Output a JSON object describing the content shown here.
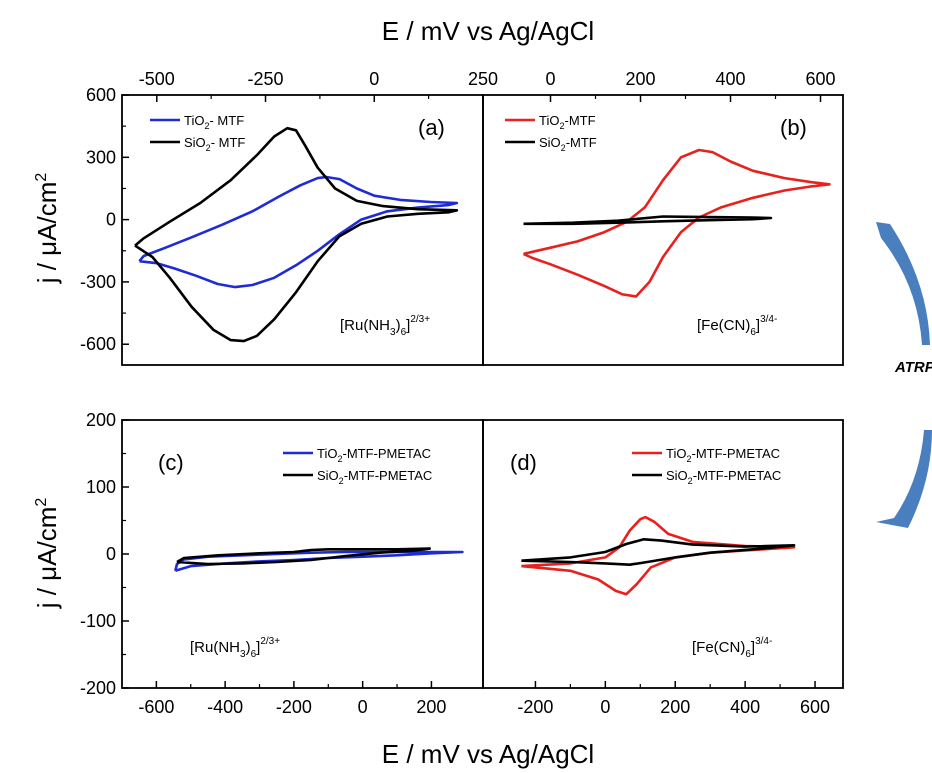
{
  "figure": {
    "top_axis_title": "E / mV  vs Ag/AgCl",
    "bottom_axis_title": "E / mV  vs Ag/AgCl",
    "top_y_title": "j / μA/cm",
    "bottom_y_title": "j / μA/cm",
    "y_title_superscript": "2",
    "side_label": "ATRP"
  },
  "colors": {
    "tio2": "#e8211c",
    "tio2_blue": "#1f2bd6",
    "sio2": "#000000",
    "arrow": "#4a7fbf"
  },
  "chart_data": [
    {
      "id": "a",
      "type": "line",
      "label": "(a)",
      "species": {
        "base": "[Ru(NH",
        "sub1": "3",
        "mid": ")",
        "sub2": "6",
        "end": "]",
        "sup": "2/3+"
      },
      "xaxis": "top",
      "xlim": [
        -580,
        250
      ],
      "ylim": [
        -700,
        600
      ],
      "xticks": [
        -500,
        -250,
        0,
        250
      ],
      "yticks": [
        -600,
        -300,
        0,
        300,
        600
      ],
      "series": [
        {
          "name": "TiO2- MTF",
          "legend": {
            "base": "TiO",
            "sub": "2",
            "rest": "- MTF"
          },
          "color": "#1f2bd6",
          "points": [
            [
              -540,
              -200
            ],
            [
              -530,
              -175
            ],
            [
              -480,
              -135
            ],
            [
              -420,
              -85
            ],
            [
              -350,
              -25
            ],
            [
              -280,
              40
            ],
            [
              -220,
              110
            ],
            [
              -170,
              165
            ],
            [
              -130,
              200
            ],
            [
              -110,
              205
            ],
            [
              -80,
              195
            ],
            [
              -40,
              150
            ],
            [
              0,
              115
            ],
            [
              60,
              95
            ],
            [
              130,
              85
            ],
            [
              190,
              80
            ],
            [
              170,
              70
            ],
            [
              100,
              58
            ],
            [
              30,
              40
            ],
            [
              -30,
              0
            ],
            [
              -80,
              -70
            ],
            [
              -130,
              -150
            ],
            [
              -180,
              -220
            ],
            [
              -230,
              -280
            ],
            [
              -280,
              -315
            ],
            [
              -320,
              -325
            ],
            [
              -360,
              -310
            ],
            [
              -410,
              -270
            ],
            [
              -460,
              -235
            ],
            [
              -500,
              -210
            ],
            [
              -540,
              -200
            ]
          ]
        },
        {
          "name": "SiO2- MTF",
          "legend": {
            "base": "SiO",
            "sub": "2",
            "rest": "- MTF"
          },
          "color": "#000000",
          "points": [
            [
              -550,
              -125
            ],
            [
              -530,
              -90
            ],
            [
              -470,
              -10
            ],
            [
              -400,
              80
            ],
            [
              -330,
              190
            ],
            [
              -270,
              310
            ],
            [
              -230,
              400
            ],
            [
              -200,
              440
            ],
            [
              -180,
              430
            ],
            [
              -160,
              360
            ],
            [
              -130,
              250
            ],
            [
              -90,
              150
            ],
            [
              -40,
              90
            ],
            [
              20,
              65
            ],
            [
              100,
              50
            ],
            [
              190,
              45
            ],
            [
              170,
              35
            ],
            [
              100,
              28
            ],
            [
              30,
              15
            ],
            [
              -30,
              -20
            ],
            [
              -80,
              -80
            ],
            [
              -130,
              -200
            ],
            [
              -180,
              -350
            ],
            [
              -230,
              -480
            ],
            [
              -270,
              -560
            ],
            [
              -300,
              -585
            ],
            [
              -330,
              -580
            ],
            [
              -370,
              -530
            ],
            [
              -420,
              -420
            ],
            [
              -470,
              -280
            ],
            [
              -510,
              -180
            ],
            [
              -550,
              -125
            ]
          ]
        }
      ]
    },
    {
      "id": "b",
      "type": "line",
      "label": "(b)",
      "species": {
        "base": "[Fe(CN)",
        "sub1": "6",
        "end": "]",
        "sup": "3/4-"
      },
      "xaxis": "top",
      "xlim": [
        -150,
        650
      ],
      "ylim": [
        -700,
        600
      ],
      "xticks": [
        0,
        200,
        400,
        600
      ],
      "yticks": [],
      "series": [
        {
          "name": "TiO2-MTF",
          "legend": {
            "base": "TiO",
            "sub": "2",
            "rest": "-MTF"
          },
          "color": "#e8211c",
          "points": [
            [
              -60,
              -165
            ],
            [
              0,
              -135
            ],
            [
              60,
              -105
            ],
            [
              120,
              -60
            ],
            [
              170,
              -10
            ],
            [
              210,
              60
            ],
            [
              250,
              190
            ],
            [
              290,
              300
            ],
            [
              330,
              335
            ],
            [
              360,
              325
            ],
            [
              400,
              280
            ],
            [
              450,
              235
            ],
            [
              520,
              200
            ],
            [
              580,
              180
            ],
            [
              620,
              170
            ],
            [
              580,
              160
            ],
            [
              520,
              140
            ],
            [
              450,
              105
            ],
            [
              380,
              60
            ],
            [
              330,
              10
            ],
            [
              290,
              -60
            ],
            [
              250,
              -180
            ],
            [
              220,
              -300
            ],
            [
              190,
              -370
            ],
            [
              160,
              -360
            ],
            [
              120,
              -320
            ],
            [
              60,
              -265
            ],
            [
              0,
              -215
            ],
            [
              -40,
              -185
            ],
            [
              -60,
              -165
            ]
          ]
        },
        {
          "name": "SiO2-MTF",
          "legend": {
            "base": "SiO",
            "sub": "2",
            "rest": "-MTF"
          },
          "color": "#000000",
          "points": [
            [
              -60,
              -20
            ],
            [
              50,
              -15
            ],
            [
              150,
              -5
            ],
            [
              250,
              15
            ],
            [
              350,
              12
            ],
            [
              450,
              10
            ],
            [
              490,
              8
            ],
            [
              450,
              2
            ],
            [
              350,
              -3
            ],
            [
              250,
              -8
            ],
            [
              150,
              -15
            ],
            [
              50,
              -20
            ],
            [
              -60,
              -20
            ]
          ]
        }
      ]
    },
    {
      "id": "c",
      "type": "line",
      "label": "(c)",
      "species": {
        "base": "[Ru(NH",
        "sub1": "3",
        "mid": ")",
        "sub2": "6",
        "end": "]",
        "sup": "2/3+"
      },
      "xaxis": "bottom",
      "xlim": [
        -700,
        350
      ],
      "ylim": [
        -200,
        200
      ],
      "xticks": [
        -600,
        -400,
        -200,
        0,
        200
      ],
      "yticks": [
        -200,
        -100,
        0,
        100,
        200
      ],
      "series": [
        {
          "name": "TiO2-MTF-PMETAC",
          "legend": {
            "base": "TiO",
            "sub": "2",
            "rest": "-MTF-PMETAC"
          },
          "color": "#1f2bd6",
          "points": [
            [
              -545,
              -25
            ],
            [
              -540,
              -15
            ],
            [
              -520,
              -8
            ],
            [
              -450,
              -4
            ],
            [
              -350,
              -2
            ],
            [
              -250,
              0
            ],
            [
              -150,
              2
            ],
            [
              -50,
              3
            ],
            [
              100,
              3
            ],
            [
              200,
              3
            ],
            [
              290,
              3
            ],
            [
              200,
              1
            ],
            [
              100,
              -2
            ],
            [
              0,
              -4
            ],
            [
              -100,
              -6
            ],
            [
              -200,
              -9
            ],
            [
              -300,
              -11
            ],
            [
              -400,
              -14
            ],
            [
              -500,
              -18
            ],
            [
              -545,
              -25
            ]
          ]
        },
        {
          "name": "SiO2-MTF-PMETAC",
          "legend": {
            "base": "SiO",
            "sub": "2",
            "rest": "-MTF-PMETAC"
          },
          "color": "#000000",
          "points": [
            [
              -540,
              -12
            ],
            [
              -520,
              -6
            ],
            [
              -420,
              -2
            ],
            [
              -300,
              1
            ],
            [
              -200,
              3
            ],
            [
              -150,
              6
            ],
            [
              -100,
              7
            ],
            [
              0,
              7
            ],
            [
              100,
              7
            ],
            [
              195,
              8
            ],
            [
              150,
              5
            ],
            [
              50,
              2
            ],
            [
              -50,
              -3
            ],
            [
              -150,
              -9
            ],
            [
              -250,
              -12
            ],
            [
              -350,
              -14
            ],
            [
              -450,
              -15
            ],
            [
              -540,
              -12
            ]
          ]
        }
      ]
    },
    {
      "id": "d",
      "type": "line",
      "label": "(d)",
      "species": {
        "base": "[Fe(CN)",
        "sub1": "6",
        "end": "]",
        "sup": "3/4-"
      },
      "xaxis": "bottom",
      "xlim": [
        -350,
        680
      ],
      "ylim": [
        -200,
        200
      ],
      "xticks": [
        -200,
        0,
        200,
        400,
        600
      ],
      "yticks": [],
      "series": [
        {
          "name": "TiO2-MTF-PMETAC",
          "legend": {
            "base": "TiO",
            "sub": "2",
            "rest": "-MTF-PMETAC"
          },
          "color": "#e8211c",
          "points": [
            [
              -240,
              -18
            ],
            [
              -100,
              -14
            ],
            [
              0,
              -5
            ],
            [
              40,
              10
            ],
            [
              70,
              35
            ],
            [
              100,
              52
            ],
            [
              115,
              55
            ],
            [
              140,
              48
            ],
            [
              180,
              30
            ],
            [
              250,
              18
            ],
            [
              400,
              12
            ],
            [
              540,
              10
            ],
            [
              450,
              7
            ],
            [
              300,
              2
            ],
            [
              200,
              -5
            ],
            [
              130,
              -20
            ],
            [
              90,
              -45
            ],
            [
              60,
              -60
            ],
            [
              30,
              -55
            ],
            [
              -20,
              -38
            ],
            [
              -100,
              -25
            ],
            [
              -240,
              -18
            ]
          ]
        },
        {
          "name": "SiO2-MTF-PMETAC",
          "legend": {
            "base": "SiO",
            "sub": "2",
            "rest": "-MTF-PMETAC"
          },
          "color": "#000000",
          "points": [
            [
              -240,
              -10
            ],
            [
              -100,
              -5
            ],
            [
              0,
              3
            ],
            [
              60,
              15
            ],
            [
              110,
              22
            ],
            [
              160,
              20
            ],
            [
              250,
              14
            ],
            [
              400,
              11
            ],
            [
              540,
              13
            ],
            [
              450,
              8
            ],
            [
              300,
              2
            ],
            [
              200,
              -5
            ],
            [
              120,
              -12
            ],
            [
              70,
              -16
            ],
            [
              0,
              -14
            ],
            [
              -100,
              -12
            ],
            [
              -240,
              -10
            ]
          ]
        }
      ]
    }
  ]
}
